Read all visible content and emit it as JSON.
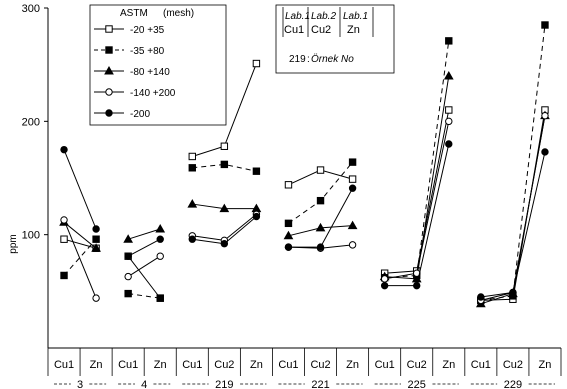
{
  "chart_data": {
    "type": "line",
    "ylabel": "ppm",
    "ylim": [
      0,
      300
    ],
    "y_ticks": [
      100,
      200,
      300
    ],
    "x_tick_labels": [
      "Cu1",
      "Zn",
      "Cu1",
      "Zn",
      "Cu1",
      "Cu2",
      "Zn",
      "Cu1",
      "Cu2",
      "Zn",
      "Cu1",
      "Cu2",
      "Zn",
      "Cu1",
      "Cu2",
      "Zn"
    ],
    "groups": [
      {
        "label": "3",
        "span": [
          0,
          1
        ]
      },
      {
        "label": "4",
        "span": [
          2,
          3
        ]
      },
      {
        "label": "219",
        "span": [
          4,
          6
        ]
      },
      {
        "label": "221",
        "span": [
          7,
          9
        ]
      },
      {
        "label": "225",
        "span": [
          10,
          12
        ]
      },
      {
        "label": "229",
        "span": [
          13,
          15
        ]
      }
    ],
    "segments": [
      [
        0,
        1
      ],
      [
        2,
        3
      ],
      [
        4,
        5,
        6
      ],
      [
        7,
        8,
        9
      ],
      [
        10,
        11,
        12
      ],
      [
        13,
        14,
        15
      ]
    ],
    "legend": {
      "title": "ASTM",
      "title_unit": "(mesh)",
      "position": "top-left"
    },
    "series": [
      {
        "name": "-20 +35",
        "marker": "open-square",
        "dash": "solid",
        "values": [
          96,
          88,
          81,
          44,
          169,
          178,
          251,
          144,
          157,
          149,
          66,
          68,
          210,
          42,
          43,
          210
        ]
      },
      {
        "name": "-35 +80",
        "marker": "filled-square",
        "dash": "dashed",
        "values": [
          64,
          96,
          48,
          44,
          159,
          162,
          156,
          110,
          130,
          164,
          62,
          64,
          271,
          42,
          46,
          285
        ]
      },
      {
        "name": "-80 +140",
        "marker": "filled-triangle",
        "dash": "solid",
        "values": [
          111,
          88,
          96,
          105,
          127,
          123,
          123,
          99,
          106,
          108,
          63,
          61,
          240,
          39,
          48,
          205
        ]
      },
      {
        "name": "-140 +200",
        "marker": "open-circle",
        "dash": "solid",
        "values": [
          113,
          44,
          63,
          81,
          99,
          95,
          118,
          89,
          88,
          91,
          61,
          66,
          200,
          42,
          49,
          205
        ]
      },
      {
        "name": "-200",
        "marker": "filled-circle",
        "dash": "solid",
        "values": [
          175,
          105,
          81,
          96,
          96,
          92,
          116,
          89,
          89,
          141,
          55,
          55,
          180,
          45,
          49,
          173
        ]
      }
    ],
    "info_box": {
      "lab1": "Lab.1",
      "lab2": "Lab.2",
      "lab1b": "Lab.1",
      "cu1": "Cu1",
      "cu2": "Cu2",
      "zn": "Zn",
      "sample_no": "219",
      "sample_text": "Örnek No"
    }
  }
}
